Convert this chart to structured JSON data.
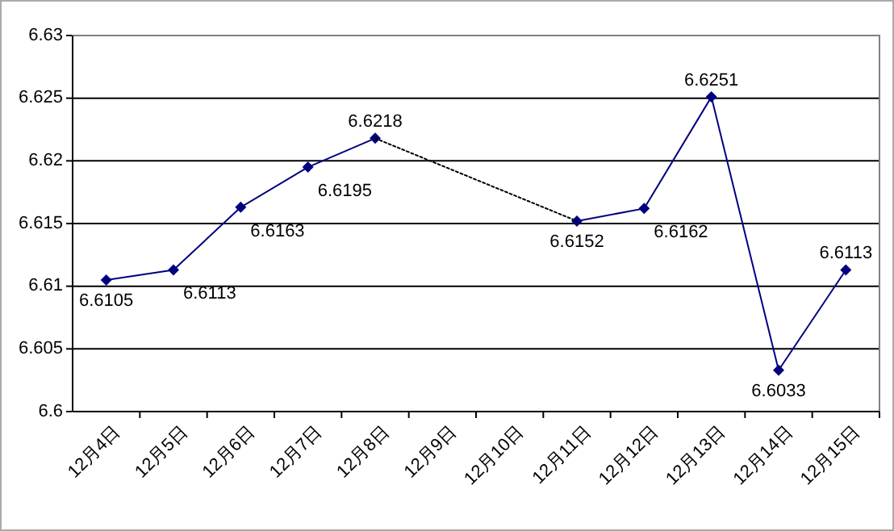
{
  "chart_data": {
    "type": "line",
    "categories": [
      "12月4日",
      "12月5日",
      "12月6日",
      "12月7日",
      "12月8日",
      "12月9日",
      "12月10日",
      "12月11日",
      "12月12日",
      "12月13日",
      "12月14日",
      "12月15日"
    ],
    "series": [
      {
        "color": "#000080",
        "marker": "diamond",
        "line_style": "solid",
        "values": [
          6.6105,
          6.6113,
          6.6163,
          6.6195,
          6.6218,
          null,
          null,
          6.6152,
          6.6162,
          6.6251,
          6.6033,
          6.6113
        ]
      },
      {
        "color": "#000000",
        "marker": "none",
        "line_style": "dotted",
        "x": [
          "12月8日",
          "12月11日"
        ],
        "values": [
          6.6218,
          6.6152
        ],
        "value_labels": [
          null,
          null
        ]
      }
    ],
    "data_labels": true,
    "ylim": [
      6.6,
      6.63
    ],
    "yticks": [
      6.6,
      6.605,
      6.61,
      6.615,
      6.62,
      6.625,
      6.63
    ],
    "grid": "y"
  }
}
